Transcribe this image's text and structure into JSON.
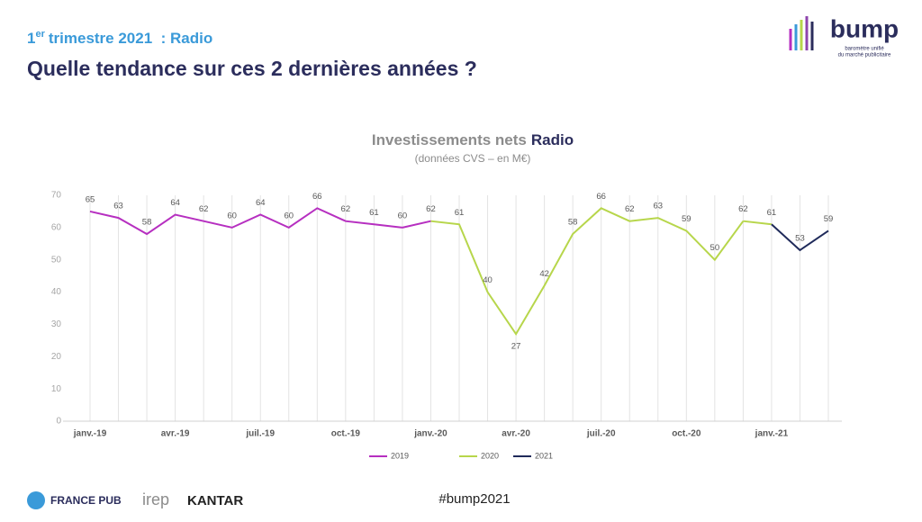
{
  "header": {
    "kicker_number": "1",
    "kicker_sup": "er",
    "kicker_rest": "trimestre 2021  : Radio",
    "title": "Quelle tendance sur ces 2 dernières années ?"
  },
  "logo": {
    "name": "bump",
    "tagline_1": "baromètre unifié",
    "tagline_2": "du marché publicitaire"
  },
  "footer": {
    "logos": [
      "FRANCE PUB",
      "irep",
      "KANTAR"
    ],
    "hashtag": "#bump2021"
  },
  "chart_data": {
    "type": "line",
    "title": "Investissements nets",
    "title_emphasis": "Radio",
    "subtitle": "(données CVS – en M€)",
    "categories": [
      "janv.-19",
      null,
      null,
      "avr.-19",
      null,
      null,
      "juil.-19",
      null,
      null,
      "oct.-19",
      null,
      null,
      "janv.-20",
      null,
      null,
      "avr.-20",
      null,
      null,
      "juil.-20",
      null,
      null,
      "oct.-20",
      null,
      null,
      "janv.-21",
      null,
      null
    ],
    "series": [
      {
        "name": "2019",
        "color": "#b62fc0",
        "values": [
          65,
          63,
          58,
          64,
          62,
          60,
          64,
          60,
          66,
          62,
          61,
          60,
          null,
          null,
          null,
          null,
          null,
          null,
          null,
          null,
          null,
          null,
          null,
          null,
          null,
          null,
          null
        ]
      },
      {
        "name": "2020",
        "color": "#b7d64b",
        "values": [
          null,
          null,
          null,
          null,
          null,
          null,
          null,
          null,
          null,
          null,
          null,
          null,
          62,
          61,
          40,
          27,
          42,
          58,
          66,
          62,
          63,
          59,
          50,
          62,
          null,
          null,
          null
        ]
      },
      {
        "name": "2021",
        "color": "#1f2a5a",
        "values": [
          null,
          null,
          null,
          null,
          null,
          null,
          null,
          null,
          null,
          null,
          null,
          null,
          null,
          null,
          null,
          null,
          null,
          null,
          null,
          null,
          null,
          null,
          null,
          null,
          61,
          53,
          59
        ]
      }
    ],
    "ylim": [
      0,
      70
    ],
    "yticks": [
      0,
      10,
      20,
      30,
      40,
      50,
      60,
      70
    ],
    "grid": true,
    "legend": "bottom"
  }
}
